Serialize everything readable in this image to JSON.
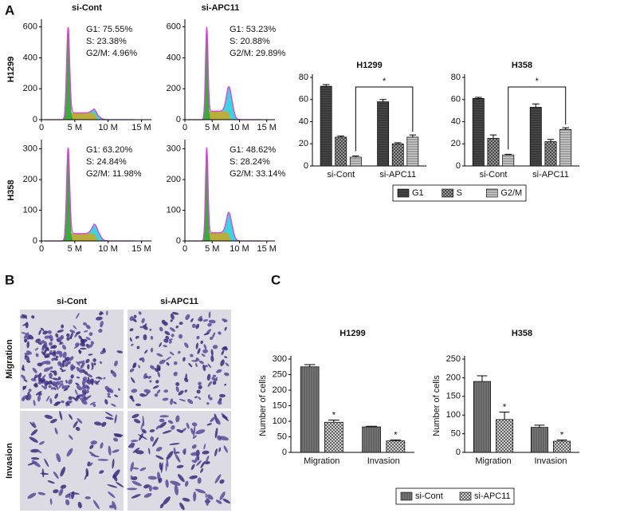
{
  "panel_labels": {
    "a": "A",
    "b": "B",
    "c": "C"
  },
  "flow": {
    "columns": [
      "si-Cont",
      "si-APC11"
    ],
    "rows": [
      "H1299",
      "H358"
    ],
    "stats": [
      [
        [
          "G1: 75.55%",
          "S: 23.38%",
          "G2/M: 4.96%"
        ],
        [
          "G1: 53.23%",
          "S: 20.88%",
          "G2/M: 29.89%"
        ]
      ],
      [
        [
          "G1: 63.20%",
          "S: 24.84%",
          "G2/M: 11.98%"
        ],
        [
          "G1: 48.62%",
          "S: 28.24%",
          "G2/M: 33.14%"
        ]
      ]
    ],
    "xlim": [
      0,
      16.5
    ],
    "xticks": [
      {
        "value": 0,
        "label": "0"
      },
      {
        "value": 5,
        "label": "5 M"
      },
      {
        "value": 10,
        "label": "10 M"
      },
      {
        "value": 15,
        "label": "15 M"
      }
    ],
    "ylims": [
      [
        0,
        650
      ],
      [
        0,
        330
      ]
    ],
    "yticks": [
      [
        0,
        200,
        400,
        600
      ],
      [
        0,
        100,
        200,
        300
      ]
    ]
  },
  "micrographs": {
    "columns": [
      "si-Cont",
      "si-APC11"
    ],
    "rows": [
      "Migration",
      "Invasion"
    ]
  },
  "chart_data": [
    {
      "type": "bar",
      "title": "H1299",
      "categories": [
        "si-Cont",
        "si-APC11"
      ],
      "series": [
        {
          "name": "G1",
          "color": "#4a4a4a",
          "values": [
            72,
            58
          ],
          "errors": [
            1.5,
            2
          ]
        },
        {
          "name": "S",
          "color": "#9a9a9a",
          "values": [
            26,
            20
          ],
          "errors": [
            1,
            1
          ]
        },
        {
          "name": "G2/M",
          "color": "#cfcfcf",
          "values": [
            8,
            26
          ],
          "errors": [
            1,
            2
          ]
        }
      ],
      "ylim": [
        0,
        80
      ],
      "yticks": [
        0,
        20,
        40,
        60,
        80
      ],
      "annotation": "*",
      "bracket": true,
      "legend": "bottom"
    },
    {
      "type": "bar",
      "title": "H358",
      "categories": [
        "si-Cont",
        "si-APC11"
      ],
      "series": [
        {
          "color": "#4a4a4a",
          "values": [
            61,
            53
          ],
          "errors": [
            1,
            3
          ]
        },
        {
          "color": "#9a9a9a",
          "values": [
            25,
            22
          ],
          "errors": [
            3,
            2
          ]
        },
        {
          "color": "#cfcfcf",
          "values": [
            10,
            33
          ],
          "errors": [
            0.5,
            1.5
          ]
        }
      ],
      "ylim": [
        0,
        80
      ],
      "yticks": [
        0,
        20,
        40,
        60,
        80
      ],
      "annotation": "*",
      "bracket": true
    },
    {
      "type": "bar",
      "title": "H1299",
      "ylabel": "Number of cells",
      "categories": [
        "Migration",
        "Invasion"
      ],
      "series": [
        {
          "name": "si-Cont",
          "color": "#7a7a7a",
          "values": [
            275,
            82
          ],
          "errors": [
            7,
            2
          ]
        },
        {
          "name": "si-APC11",
          "color": "#d4d4d4",
          "values": [
            97,
            37
          ],
          "errors": [
            7,
            3
          ]
        }
      ],
      "ylim": [
        0,
        300
      ],
      "yticks": [
        0,
        50,
        100,
        150,
        200,
        250,
        300
      ],
      "annotation": "*",
      "legend": "bottom"
    },
    {
      "type": "bar",
      "title": "H358",
      "ylabel": "Number of cells",
      "categories": [
        "Migration",
        "Invasion"
      ],
      "series": [
        {
          "color": "#7a7a7a",
          "values": [
            190,
            67
          ],
          "errors": [
            15,
            6
          ]
        },
        {
          "color": "#d4d4d4",
          "values": [
            88,
            30
          ],
          "errors": [
            20,
            3
          ]
        }
      ],
      "ylim": [
        0,
        250
      ],
      "yticks": [
        0,
        50,
        100,
        150,
        200,
        250
      ],
      "annotation": "*"
    }
  ]
}
